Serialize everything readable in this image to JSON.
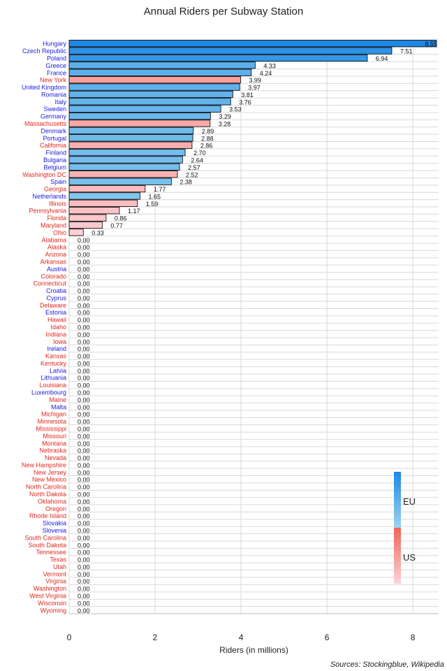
{
  "chart_data": {
    "type": "bar",
    "orientation": "horizontal",
    "title": "Annual Riders per Subway Station",
    "xlabel": "Riders (in millions)",
    "ylabel": "",
    "xlim": [
      0,
      8.6
    ],
    "xticks": [
      "0",
      "2",
      "4",
      "6",
      "8"
    ],
    "grid": true,
    "legend_placement": "bottom-right",
    "legend": [
      {
        "name": "EU",
        "color_top": "#1e88e5",
        "color_bottom": "#9ad4f0"
      },
      {
        "name": "US",
        "color_top": "#f0645a",
        "color_bottom": "#fcd3d8"
      }
    ],
    "colors": {
      "eu_label": "#1a1adf",
      "us_label": "#e0281e",
      "eu_bar_max": "#1e88e5",
      "eu_bar_min": "#9ad4f0",
      "us_bar_max": "#f0645a",
      "us_bar_min": "#fcd3d8"
    },
    "categories": [
      {
        "label": "Hungary",
        "value": 8.55,
        "value_label": "8.55",
        "group": "EU"
      },
      {
        "label": "Czech Republic",
        "value": 7.51,
        "value_label": "7.51",
        "group": "EU"
      },
      {
        "label": "Poland",
        "value": 6.94,
        "value_label": "6.94",
        "group": "EU"
      },
      {
        "label": "Greece",
        "value": 4.33,
        "value_label": "4.33",
        "group": "EU"
      },
      {
        "label": "France",
        "value": 4.24,
        "value_label": "4.24",
        "group": "EU"
      },
      {
        "label": "New York",
        "value": 3.99,
        "value_label": "3.99",
        "group": "US"
      },
      {
        "label": "United Kingdom",
        "value": 3.97,
        "value_label": "3.97",
        "group": "EU"
      },
      {
        "label": "Romania",
        "value": 3.81,
        "value_label": "3.81",
        "group": "EU"
      },
      {
        "label": "Italy",
        "value": 3.76,
        "value_label": "3.76",
        "group": "EU"
      },
      {
        "label": "Sweden",
        "value": 3.53,
        "value_label": "3.53",
        "group": "EU"
      },
      {
        "label": "Germany",
        "value": 3.29,
        "value_label": "3.29",
        "group": "EU"
      },
      {
        "label": "Massachusetts",
        "value": 3.28,
        "value_label": "3.28",
        "group": "US"
      },
      {
        "label": "Denmark",
        "value": 2.89,
        "value_label": "2.89",
        "group": "EU"
      },
      {
        "label": "Portugal",
        "value": 2.88,
        "value_label": "2.88",
        "group": "EU"
      },
      {
        "label": "California",
        "value": 2.86,
        "value_label": "2.86",
        "group": "US"
      },
      {
        "label": "Finland",
        "value": 2.7,
        "value_label": "2.70",
        "group": "EU"
      },
      {
        "label": "Bulgaria",
        "value": 2.64,
        "value_label": "2.64",
        "group": "EU"
      },
      {
        "label": "Belgium",
        "value": 2.57,
        "value_label": "2.57",
        "group": "EU"
      },
      {
        "label": "Washington DC",
        "value": 2.52,
        "value_label": "2.52",
        "group": "US"
      },
      {
        "label": "Spain",
        "value": 2.38,
        "value_label": "2.38",
        "group": "EU"
      },
      {
        "label": "Georgia",
        "value": 1.77,
        "value_label": "1.77",
        "group": "US"
      },
      {
        "label": "Netherlands",
        "value": 1.65,
        "value_label": "1.65",
        "group": "EU"
      },
      {
        "label": "Illinois",
        "value": 1.59,
        "value_label": "1.59",
        "group": "US"
      },
      {
        "label": "Pennsylvania",
        "value": 1.17,
        "value_label": "1.17",
        "group": "US"
      },
      {
        "label": "Florida",
        "value": 0.86,
        "value_label": "0.86",
        "group": "US"
      },
      {
        "label": "Maryland",
        "value": 0.77,
        "value_label": "0.77",
        "group": "US"
      },
      {
        "label": "Ohio",
        "value": 0.33,
        "value_label": "0.33",
        "group": "US"
      },
      {
        "label": "Alabama",
        "value": 0,
        "value_label": "0.00",
        "group": "US"
      },
      {
        "label": "Alaska",
        "value": 0,
        "value_label": "0.00",
        "group": "US"
      },
      {
        "label": "Arizona",
        "value": 0,
        "value_label": "0.00",
        "group": "US"
      },
      {
        "label": "Arkansas",
        "value": 0,
        "value_label": "0.00",
        "group": "US"
      },
      {
        "label": "Austria",
        "value": 0,
        "value_label": "0.00",
        "group": "EU"
      },
      {
        "label": "Colorado",
        "value": 0,
        "value_label": "0.00",
        "group": "US"
      },
      {
        "label": "Connecticut",
        "value": 0,
        "value_label": "0.00",
        "group": "US"
      },
      {
        "label": "Croatia",
        "value": 0,
        "value_label": "0.00",
        "group": "EU"
      },
      {
        "label": "Cyprus",
        "value": 0,
        "value_label": "0.00",
        "group": "EU"
      },
      {
        "label": "Delaware",
        "value": 0,
        "value_label": "0.00",
        "group": "US"
      },
      {
        "label": "Estonia",
        "value": 0,
        "value_label": "0.00",
        "group": "EU"
      },
      {
        "label": "Hawaii",
        "value": 0,
        "value_label": "0.00",
        "group": "US"
      },
      {
        "label": "Idaho",
        "value": 0,
        "value_label": "0.00",
        "group": "US"
      },
      {
        "label": "Indiana",
        "value": 0,
        "value_label": "0.00",
        "group": "US"
      },
      {
        "label": "Iowa",
        "value": 0,
        "value_label": "0.00",
        "group": "US"
      },
      {
        "label": "Ireland",
        "value": 0,
        "value_label": "0.00",
        "group": "EU"
      },
      {
        "label": "Kansas",
        "value": 0,
        "value_label": "0.00",
        "group": "US"
      },
      {
        "label": "Kentucky",
        "value": 0,
        "value_label": "0.00",
        "group": "US"
      },
      {
        "label": "Latvia",
        "value": 0,
        "value_label": "0.00",
        "group": "EU"
      },
      {
        "label": "Lithuania",
        "value": 0,
        "value_label": "0.00",
        "group": "EU"
      },
      {
        "label": "Louisiana",
        "value": 0,
        "value_label": "0.00",
        "group": "US"
      },
      {
        "label": "Luxembourg",
        "value": 0,
        "value_label": "0.00",
        "group": "EU"
      },
      {
        "label": "Maine",
        "value": 0,
        "value_label": "0.00",
        "group": "US"
      },
      {
        "label": "Malta",
        "value": 0,
        "value_label": "0.00",
        "group": "EU"
      },
      {
        "label": "Michigan",
        "value": 0,
        "value_label": "0.00",
        "group": "US"
      },
      {
        "label": "Minnesota",
        "value": 0,
        "value_label": "0.00",
        "group": "US"
      },
      {
        "label": "Mississippi",
        "value": 0,
        "value_label": "0.00",
        "group": "US"
      },
      {
        "label": "Missouri",
        "value": 0,
        "value_label": "0.00",
        "group": "US"
      },
      {
        "label": "Montana",
        "value": 0,
        "value_label": "0.00",
        "group": "US"
      },
      {
        "label": "Nebraska",
        "value": 0,
        "value_label": "0.00",
        "group": "US"
      },
      {
        "label": "Nevada",
        "value": 0,
        "value_label": "0.00",
        "group": "US"
      },
      {
        "label": "New Hampshire",
        "value": 0,
        "value_label": "0.00",
        "group": "US"
      },
      {
        "label": "New Jersey",
        "value": 0,
        "value_label": "0.00",
        "group": "US"
      },
      {
        "label": "New Mexico",
        "value": 0,
        "value_label": "0.00",
        "group": "US"
      },
      {
        "label": "North Carolina",
        "value": 0,
        "value_label": "0.00",
        "group": "US"
      },
      {
        "label": "North Dakota",
        "value": 0,
        "value_label": "0.00",
        "group": "US"
      },
      {
        "label": "Oklahoma",
        "value": 0,
        "value_label": "0.00",
        "group": "US"
      },
      {
        "label": "Oregon",
        "value": 0,
        "value_label": "0.00",
        "group": "US"
      },
      {
        "label": "Rhode Island",
        "value": 0,
        "value_label": "0.00",
        "group": "US"
      },
      {
        "label": "Slovakia",
        "value": 0,
        "value_label": "0.00",
        "group": "EU"
      },
      {
        "label": "Slovenia",
        "value": 0,
        "value_label": "0.00",
        "group": "EU"
      },
      {
        "label": "South Carolina",
        "value": 0,
        "value_label": "0.00",
        "group": "US"
      },
      {
        "label": "South Dakota",
        "value": 0,
        "value_label": "0.00",
        "group": "US"
      },
      {
        "label": "Tennessee",
        "value": 0,
        "value_label": "0.00",
        "group": "US"
      },
      {
        "label": "Texas",
        "value": 0,
        "value_label": "0.00",
        "group": "US"
      },
      {
        "label": "Utah",
        "value": 0,
        "value_label": "0.00",
        "group": "US"
      },
      {
        "label": "Vermont",
        "value": 0,
        "value_label": "0.00",
        "group": "US"
      },
      {
        "label": "Virginia",
        "value": 0,
        "value_label": "0.00",
        "group": "US"
      },
      {
        "label": "Washington",
        "value": 0,
        "value_label": "0.00",
        "group": "US"
      },
      {
        "label": "West Virginia",
        "value": 0,
        "value_label": "0.00",
        "group": "US"
      },
      {
        "label": "Wisconsin",
        "value": 0,
        "value_label": "0.00",
        "group": "US"
      },
      {
        "label": "Wyoming",
        "value": 0,
        "value_label": "0.00",
        "group": "US"
      }
    ],
    "source": "Sources: Stockingblue, Wikipedia"
  }
}
